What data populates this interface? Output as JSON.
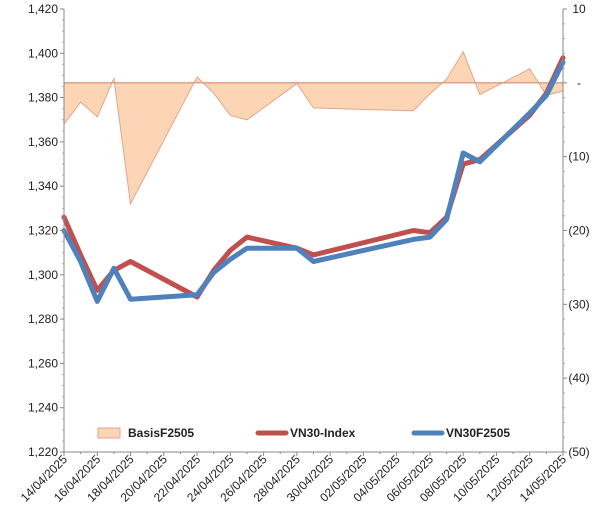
{
  "chart_data": {
    "type": "line",
    "x": [
      "14/04/2025",
      "15/04/2025",
      "16/04/2025",
      "17/04/2025",
      "18/04/2025",
      "22/04/2025",
      "23/04/2025",
      "24/04/2025",
      "25/04/2025",
      "28/04/2025",
      "29/04/2025",
      "05/05/2025",
      "06/05/2025",
      "07/05/2025",
      "08/05/2025",
      "09/05/2025",
      "12/05/2025",
      "13/05/2025",
      "14/05/2025"
    ],
    "x_tick_labels": [
      "14/04/2025",
      "16/04/2025",
      "18/04/2025",
      "20/04/2025",
      "22/04/2025",
      "24/04/2025",
      "26/04/2025",
      "28/04/2025",
      "30/04/2025",
      "02/05/2025",
      "04/05/2025",
      "06/05/2025",
      "08/05/2025",
      "10/05/2025",
      "12/05/2025",
      "14/05/2025"
    ],
    "left_axis": {
      "min": 1220,
      "max": 1420,
      "ticks": [
        "1,220",
        "1,240",
        "1,260",
        "1,280",
        "1,300",
        "1,320",
        "1,340",
        "1,360",
        "1,380",
        "1,400",
        "1,420"
      ]
    },
    "right_axis": {
      "min": -50,
      "max": 10,
      "ticks": [
        "(50)",
        "(40)",
        "(30)",
        "(20)",
        "(10)",
        "-",
        "10"
      ]
    },
    "series": [
      {
        "name": "BasisF2505",
        "kind": "area",
        "axis": "right",
        "color": "#fcd5b4",
        "edge": "#e4a58c",
        "values": [
          -5.6,
          -2.6,
          -4.6,
          0.6,
          -16.4,
          0.8,
          -1.4,
          -4.4,
          -5.0,
          -0.1,
          -3.4,
          -3.8,
          -1.5,
          0.5,
          4.2,
          -1.6,
          1.9,
          -1.7,
          -1.1
        ]
      },
      {
        "name": "VN30-Index",
        "kind": "line",
        "axis": "left",
        "color": "#c0504d",
        "values": [
          1326,
          1309,
          1293,
          1302,
          1306,
          1290,
          1302,
          1311,
          1317,
          1312,
          1309,
          1320,
          1319,
          1326,
          1350,
          1352,
          1372,
          1382,
          1398
        ]
      },
      {
        "name": "VN30F2505",
        "kind": "line",
        "axis": "left",
        "color": "#4f81bd",
        "values": [
          1320,
          1306,
          1288,
          1303,
          1289,
          1291,
          1301,
          1307,
          1312,
          1312,
          1306,
          1316,
          1317,
          1325,
          1355,
          1351,
          1373,
          1381,
          1396
        ]
      }
    ],
    "legend_position": "bottom-inside",
    "grid": false
  }
}
